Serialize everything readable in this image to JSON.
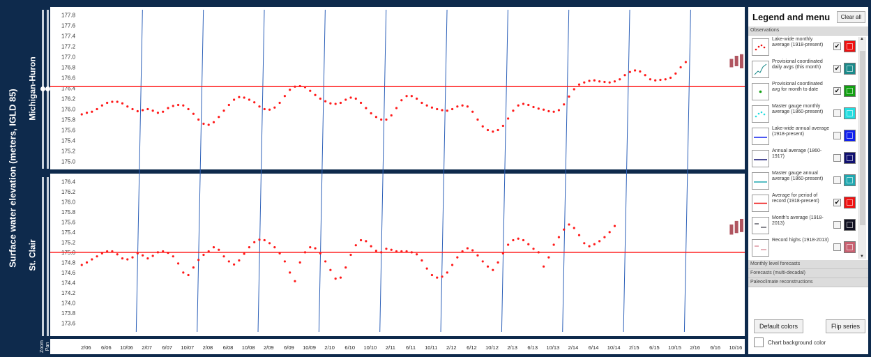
{
  "main_ylabel": "Surface water elevation (meters, IGLD 85)",
  "controls": {
    "zoom_label": "Zoom",
    "pan_label": "Pan"
  },
  "chart_data": [
    {
      "type": "scatter",
      "title": "Michigan-Huron",
      "ylabel": "Surface water elevation (meters, IGLD 85)",
      "ylim": [
        174.9,
        177.9
      ],
      "yticks": [
        175.0,
        175.2,
        175.4,
        175.6,
        175.8,
        176.0,
        176.2,
        176.4,
        176.6,
        176.8,
        177.0,
        177.2,
        177.4,
        177.6,
        177.8
      ],
      "xlim": [
        2006.0,
        2016.9
      ],
      "grid": false,
      "series": [
        {
          "name": "Lake-wide monthly average (1918-present)",
          "color": "#ff1a1a",
          "x_start": 2006.083,
          "step_months": 1,
          "values": [
            175.9,
            175.93,
            175.95,
            176.0,
            176.07,
            176.12,
            176.14,
            176.14,
            176.11,
            176.05,
            176.0,
            175.96,
            175.98,
            176.0,
            175.97,
            175.93,
            175.95,
            176.02,
            176.06,
            176.08,
            176.07,
            176.0,
            175.91,
            175.8,
            175.72,
            175.7,
            175.75,
            175.85,
            175.97,
            176.08,
            176.18,
            176.23,
            176.22,
            176.18,
            176.13,
            176.05,
            176.0,
            175.99,
            176.03,
            176.12,
            176.25,
            176.37,
            176.43,
            176.44,
            176.42,
            176.35,
            176.27,
            176.2,
            176.15,
            176.11,
            176.1,
            176.12,
            176.18,
            176.22,
            176.2,
            176.12,
            176.02,
            175.92,
            175.85,
            175.8,
            175.8,
            175.88,
            176.02,
            176.17,
            176.25,
            176.25,
            176.2,
            176.12,
            176.07,
            176.03,
            176.0,
            175.98,
            175.97,
            176.0,
            176.05,
            176.07,
            176.05,
            175.95,
            175.8,
            175.67,
            175.6,
            175.57,
            175.6,
            175.68,
            175.82,
            175.97,
            176.07,
            176.1,
            176.08,
            176.04,
            176.01,
            175.99,
            175.96,
            175.95,
            175.98,
            176.09,
            176.24,
            176.38,
            176.47,
            176.51,
            176.54,
            176.55,
            176.53,
            176.52,
            176.51,
            176.53,
            176.57,
            176.65,
            176.71,
            176.74,
            176.72,
            176.65,
            176.57,
            176.55,
            176.56,
            176.57,
            176.6,
            176.68,
            176.8,
            176.9
          ]
        },
        {
          "name": "Average for period of record (1918-present)",
          "color": "#ff1a1a",
          "constant": 176.43
        }
      ],
      "forecast_ranges": [
        [
          2016.75,
          176.8,
          176.96
        ],
        [
          2016.833,
          176.82,
          177.02
        ],
        [
          2016.917,
          176.78,
          177.05
        ],
        [
          2017.0,
          176.75,
          177.07
        ],
        [
          2017.083,
          176.72,
          177.08
        ],
        [
          2017.167,
          176.7,
          177.05
        ]
      ]
    },
    {
      "type": "scatter",
      "title": "St. Clair",
      "ylabel": "Surface water elevation (meters, IGLD 85)",
      "ylim": [
        173.4,
        176.5
      ],
      "yticks": [
        173.6,
        173.8,
        174.0,
        174.2,
        174.4,
        174.6,
        174.8,
        175.0,
        175.2,
        175.4,
        175.6,
        175.8,
        176.0,
        176.2,
        176.4
      ],
      "xlim": [
        2006.0,
        2016.9
      ],
      "grid": false,
      "x_tick_labels": [
        "2/06",
        "6/06",
        "10/06",
        "2/07",
        "6/07",
        "10/07",
        "2/08",
        "6/08",
        "10/08",
        "2/09",
        "6/09",
        "10/09",
        "2/10",
        "6/10",
        "10/10",
        "2/11",
        "6/11",
        "10/11",
        "2/12",
        "6/12",
        "10/12",
        "2/13",
        "6/13",
        "10/13",
        "2/14",
        "6/14",
        "10/14",
        "2/15",
        "6/15",
        "10/15",
        "2/16",
        "6/16",
        "10/16"
      ],
      "series": [
        {
          "name": "Lake-wide monthly average (1918-present)",
          "color": "#ff1a1a",
          "x_start": 2006.083,
          "step_months": 1,
          "values": [
            174.75,
            174.8,
            174.86,
            174.92,
            174.98,
            175.02,
            175.02,
            174.96,
            174.88,
            174.86,
            174.9,
            174.98,
            174.94,
            174.88,
            174.93,
            175.0,
            175.02,
            174.99,
            174.92,
            174.78,
            174.6,
            174.55,
            174.7,
            174.85,
            174.95,
            175.02,
            175.1,
            175.05,
            174.92,
            174.82,
            174.76,
            174.84,
            174.97,
            175.1,
            175.2,
            175.25,
            175.24,
            175.18,
            175.1,
            174.98,
            174.82,
            174.6,
            174.43,
            174.8,
            175.0,
            175.1,
            175.08,
            174.98,
            174.82,
            174.65,
            174.48,
            174.5,
            174.7,
            174.95,
            175.14,
            175.24,
            175.22,
            175.12,
            175.03,
            175.0,
            175.07,
            175.05,
            175.02,
            175.02,
            175.02,
            175.0,
            174.96,
            174.84,
            174.68,
            174.55,
            174.5,
            174.52,
            174.6,
            174.75,
            174.9,
            175.02,
            175.08,
            175.04,
            174.94,
            174.82,
            174.72,
            174.65,
            174.8,
            174.98,
            175.15,
            175.24,
            175.27,
            175.24,
            175.16,
            175.07,
            175.0,
            174.72,
            174.9,
            175.15,
            175.3,
            175.45,
            175.55,
            175.48,
            175.34,
            175.18,
            175.12,
            175.16,
            175.22,
            175.3,
            175.4,
            175.52
          ]
        },
        {
          "name": "Average for period of record (1918-present)",
          "color": "#ff1a1a",
          "constant": 175.0
        }
      ],
      "forecast_ranges": [
        [
          2016.75,
          175.35,
          175.55
        ],
        [
          2016.833,
          175.38,
          175.62
        ],
        [
          2016.917,
          175.4,
          175.66
        ],
        [
          2017.0,
          175.42,
          175.7
        ],
        [
          2017.083,
          175.4,
          175.68
        ],
        [
          2017.167,
          175.35,
          175.6
        ]
      ]
    }
  ],
  "legend": {
    "title": "Legend and menu",
    "clear_label": "Clear all",
    "sections": [
      "Observations",
      "Monthly level forecasts",
      "Forecasts (multi-decadal)",
      "Paleoclimate reconstructions"
    ],
    "items": [
      {
        "label": "Lake-wide monthly average (1918-present)",
        "checked": true,
        "color": "#ee1111",
        "icon": "dots-icon"
      },
      {
        "label": "Provisional coordinated daily avgs (this month)",
        "checked": true,
        "color": "#1a8a8a",
        "icon": "line-icon"
      },
      {
        "label": "Provisional coordinated avg for month to date",
        "checked": true,
        "color": "#12a012",
        "icon": "dot-icon"
      },
      {
        "label": "Master gauge monthly average (1860-present)",
        "checked": false,
        "color": "#22dde0",
        "icon": "dots-icon"
      },
      {
        "label": "Lake-wide annual average (1918-present)",
        "checked": false,
        "color": "#1020ee",
        "icon": "step-line-icon"
      },
      {
        "label": "Annual average (1860-1917)",
        "checked": false,
        "color": "#101070",
        "icon": "step-line-icon"
      },
      {
        "label": "Master gauge annual average (1860-present)",
        "checked": false,
        "color": "#20a8b0",
        "icon": "step-line-icon"
      },
      {
        "label": "Average for period of record (1918-present)",
        "checked": true,
        "color": "#ee1111",
        "icon": "flat-line-icon"
      },
      {
        "label": "Month's average (1918-2013)",
        "checked": false,
        "color": "#111122",
        "icon": "dash-icon"
      },
      {
        "label": "Record highs (1918-2013)",
        "checked": false,
        "color": "#c86070",
        "icon": "dash-icon"
      }
    ],
    "default_colors_label": "Default colors",
    "flip_series_label": "Flip series",
    "bg_color_label": "Chart background color"
  }
}
